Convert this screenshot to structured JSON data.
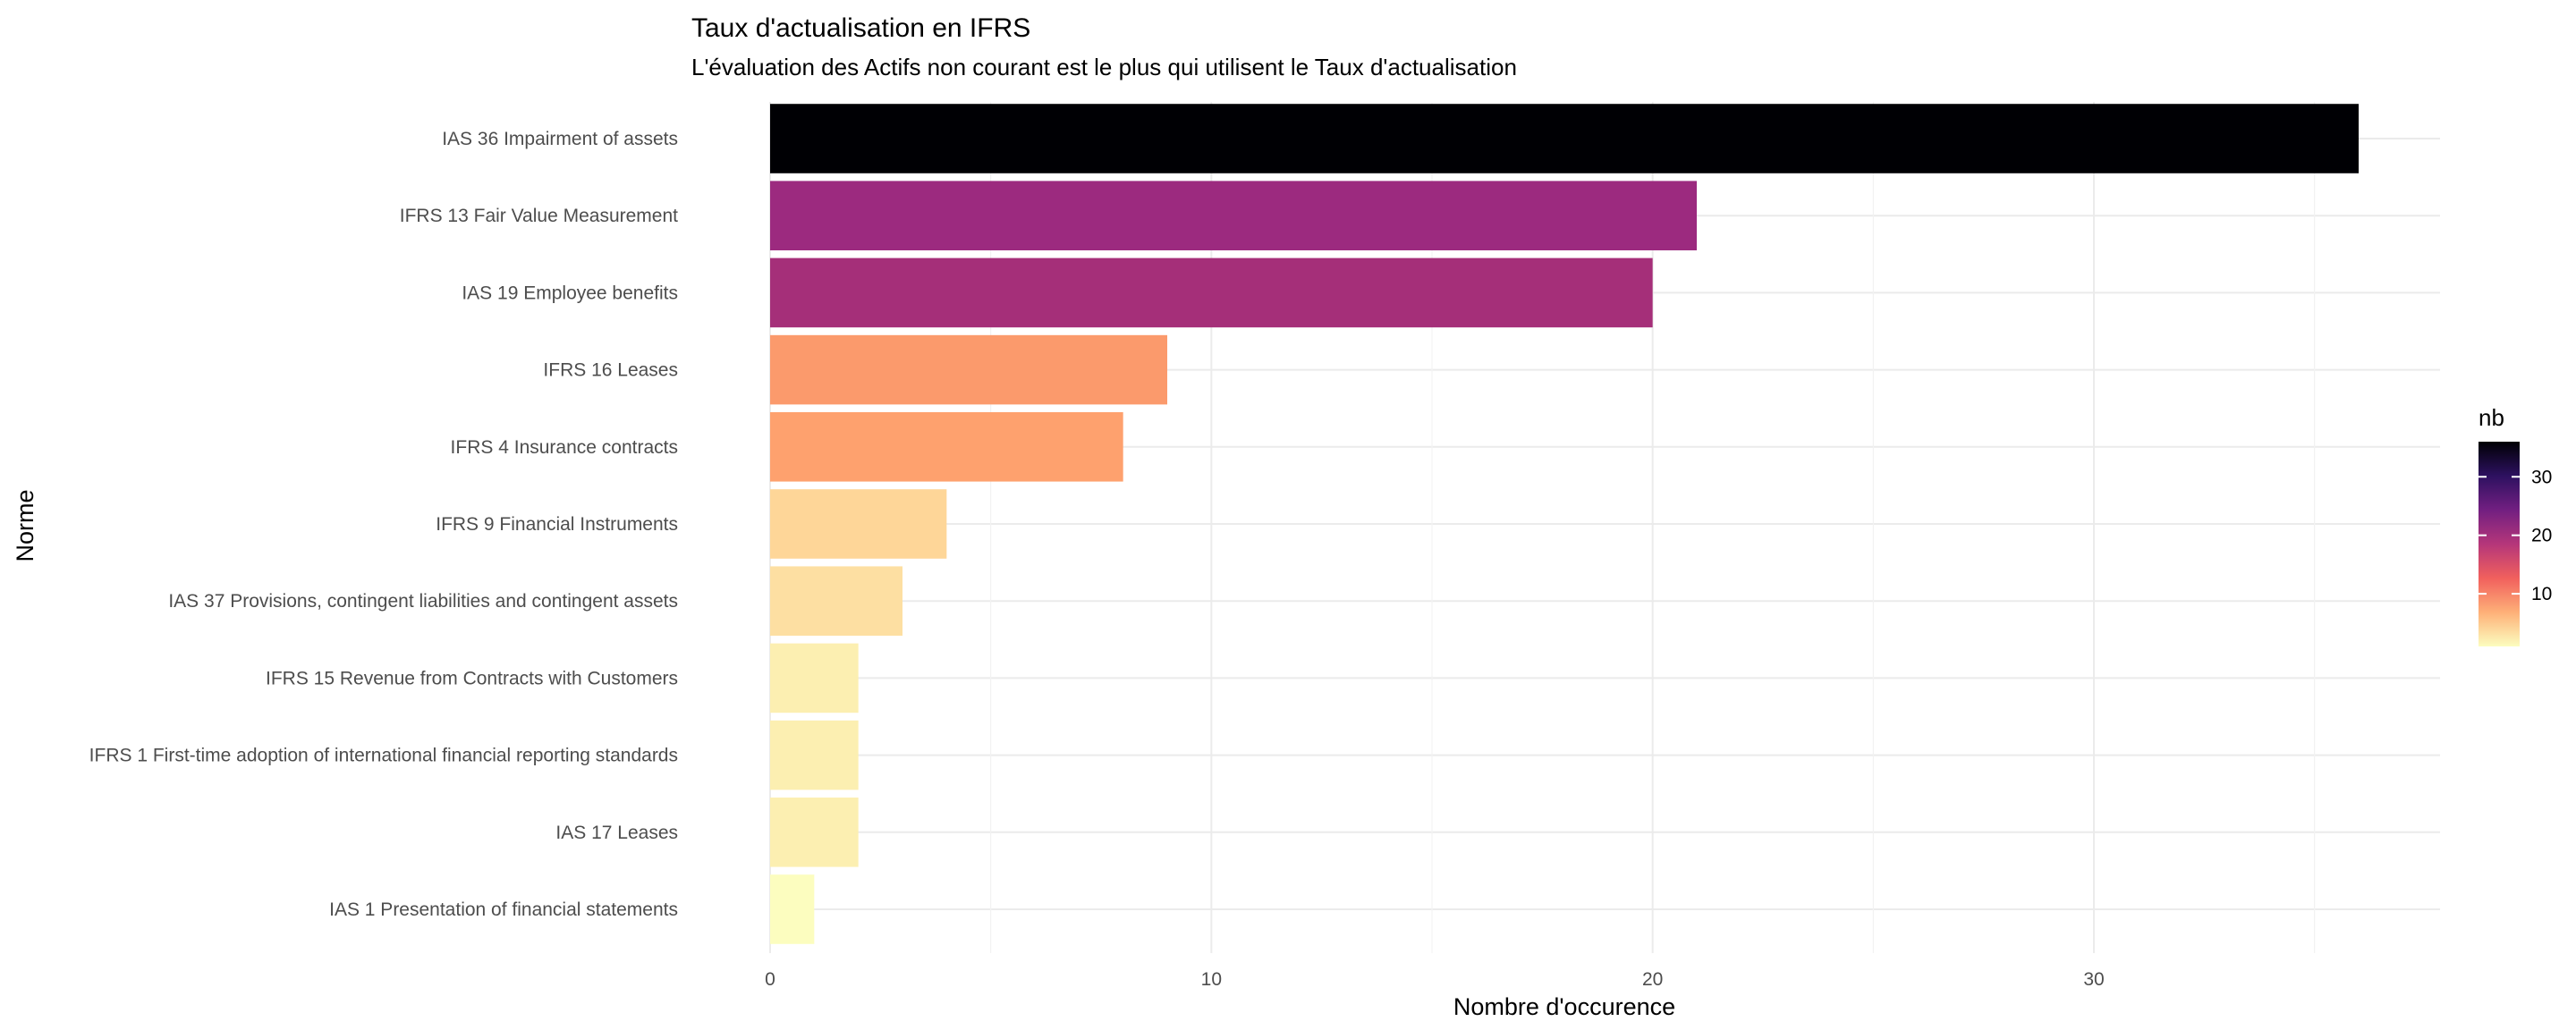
{
  "chart_data": {
    "type": "bar",
    "orientation": "horizontal",
    "title": "Taux d'actualisation en IFRS",
    "subtitle": "L'évaluation des Actifs non courant est le plus qui utilisent le Taux d'actualisation",
    "xlabel": "Nombre d'occurence",
    "ylabel": "Norme",
    "xlim": [
      0,
      37.8
    ],
    "x_ticks": [
      0,
      10,
      20,
      30
    ],
    "grid": true,
    "categories": [
      "IAS 36 Impairment of assets",
      "IFRS 13 Fair Value Measurement",
      "IAS 19 Employee benefits",
      "IFRS 16 Leases",
      "IFRS 4 Insurance contracts",
      "IFRS 9 Financial Instruments",
      "IAS 37 Provisions, contingent liabilities and contingent assets",
      "IFRS 15 Revenue from Contracts with Customers",
      "IFRS 1 First-time adoption of international financial reporting standards",
      "IAS 17 Leases",
      "IAS 1 Presentation of financial statements"
    ],
    "values": [
      36,
      21,
      20,
      9,
      8,
      4,
      3,
      2,
      2,
      2,
      1
    ],
    "colors": [
      "#000004",
      "#9c2a7f",
      "#a52f79",
      "#fb9a6c",
      "#fea16e",
      "#fed698",
      "#fddfa2",
      "#fcefb1",
      "#fcefb1",
      "#fcefb1",
      "#fcfdbf"
    ],
    "legend": {
      "title": "nb",
      "position": "right",
      "ticks": [
        10,
        20,
        30
      ],
      "range": [
        1,
        36
      ],
      "gradient_colors": [
        "#fcfdbf",
        "#feb078",
        "#f1605d",
        "#b5367a",
        "#721f81",
        "#2d1160",
        "#000004"
      ]
    }
  }
}
